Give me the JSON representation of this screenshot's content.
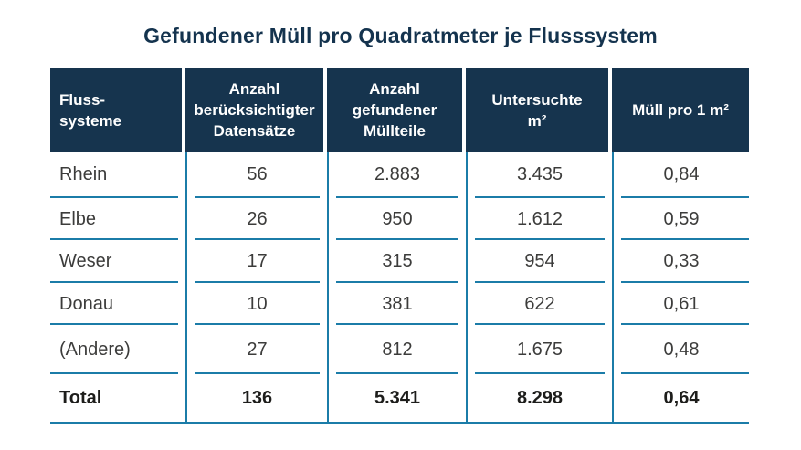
{
  "chart_data": {
    "type": "table",
    "title": "Gefundener Müll pro Quadratmeter je Flusssystem",
    "columns": [
      {
        "key": "flusssysteme",
        "label": "Fluss-\nsysteme"
      },
      {
        "key": "anzahl_datensaetze",
        "label": "Anzahl\nberücksichtigter\nDatensätze"
      },
      {
        "key": "anzahl_muellteile",
        "label": "Anzahl\ngefundener\nMüllteile"
      },
      {
        "key": "untersuchte_m2",
        "label": "Untersuchte\nm²"
      },
      {
        "key": "muell_pro_m2",
        "label": "Müll pro 1 m²"
      }
    ],
    "rows": [
      {
        "name": "Rhein",
        "values": [
          "56",
          "2.883",
          "3.435",
          "0,84"
        ],
        "total": false
      },
      {
        "name": "Elbe",
        "values": [
          "26",
          "950",
          "1.612",
          "0,59"
        ],
        "total": false
      },
      {
        "name": "Weser",
        "values": [
          "17",
          "315",
          "954",
          "0,33"
        ],
        "total": false
      },
      {
        "name": "Donau",
        "values": [
          "10",
          "381",
          "622",
          "0,61"
        ],
        "total": false
      },
      {
        "name": "(Andere)",
        "values": [
          "27",
          "812",
          "1.675",
          "0,48"
        ],
        "total": false
      },
      {
        "name": "Total",
        "values": [
          "136",
          "5.341",
          "8.298",
          "0,64"
        ],
        "total": true
      }
    ]
  },
  "colors": {
    "title": "#14334E",
    "header_background": "#16344E",
    "header_text": "#FFFFFF",
    "grid_line": "#1B7CA8",
    "body_text": "#3C3C3B",
    "total_text": "#1D1D1B",
    "background": "#FFFFFF"
  }
}
